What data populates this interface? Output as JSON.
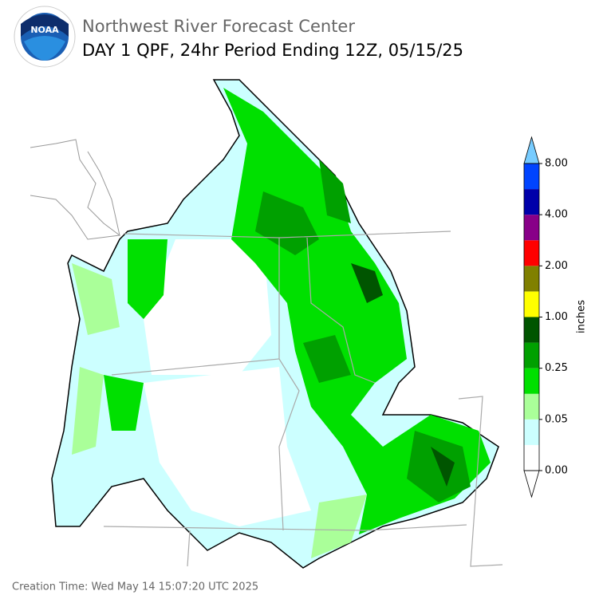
{
  "header": {
    "agency": "Northwest River Forecast Center",
    "title": "DAY 1 QPF, 24hr Period Ending 12Z, 05/15/25",
    "logo_text": "NOAA"
  },
  "colorbar": {
    "label": "inches",
    "ticks": [
      {
        "value": 0,
        "label": "0.00"
      },
      {
        "value": 0.05,
        "label": "0.05"
      },
      {
        "value": 0.25,
        "label": "0.25"
      },
      {
        "value": 1,
        "label": "1.00"
      },
      {
        "value": 2,
        "label": "2.00"
      },
      {
        "value": 4,
        "label": "4.00"
      },
      {
        "value": 8,
        "label": "8.00"
      }
    ],
    "colors": [
      "#ffffff",
      "#ccffff",
      "#aaff99",
      "#00e000",
      "#00a000",
      "#005500",
      "#ffff00",
      "#808000",
      "#ff0000",
      "#880088",
      "#0000aa",
      "#0044ff"
    ],
    "under_color": "#ffffff",
    "over_color": "#77ccff"
  },
  "footer": {
    "creation_time": "Creation Time: Wed May 14 15:07:20 UTC 2025"
  }
}
